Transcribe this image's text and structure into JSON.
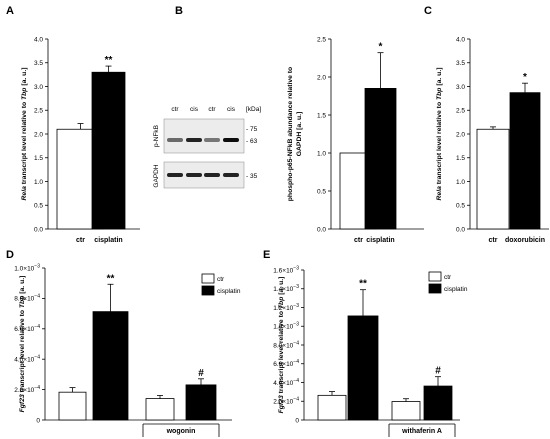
{
  "chart_data": [
    {
      "panel": "A",
      "type": "bar",
      "categories": [
        "ctr",
        "cisplatin"
      ],
      "values": [
        2.1,
        3.3
      ],
      "errors": [
        0.12,
        0.13
      ],
      "colors": [
        "#ffffff",
        "#000000"
      ],
      "significance": [
        "",
        "**"
      ],
      "ylabel_parts": [
        "Rela",
        " transcript level relative to ",
        "Tbp",
        " [a. u.]"
      ],
      "ylim": [
        0,
        4
      ],
      "yticks": [
        "0.0",
        "0.5",
        "1.0",
        "1.5",
        "2.0",
        "2.5",
        "3.0",
        "3.5",
        "4.0"
      ]
    },
    {
      "panel": "B",
      "type": "bar",
      "categories": [
        "ctr",
        "cisplatin"
      ],
      "values": [
        1.0,
        1.85
      ],
      "errors": [
        0,
        0.47
      ],
      "colors": [
        "#ffffff",
        "#000000"
      ],
      "significance": [
        "",
        "*"
      ],
      "ylabel_lines": [
        "phospho-p65-NFkB abundance relative to",
        "GAPDH [a. u.]"
      ],
      "ylim": [
        0,
        2.5
      ],
      "yticks": [
        "0.0",
        "0.5",
        "1.0",
        "1.5",
        "2.0",
        "2.5"
      ],
      "blot": {
        "lane_labels": [
          "ctr",
          "cis",
          "ctr",
          "cis"
        ],
        "marker_unit": "[kDa]",
        "rows": [
          {
            "label": "p-NFkB",
            "markers": [
              "75",
              "63"
            ]
          },
          {
            "label": "GAPDH",
            "markers": [
              "35"
            ]
          }
        ]
      }
    },
    {
      "panel": "C",
      "type": "bar",
      "categories": [
        "ctr",
        "doxorubicin"
      ],
      "values": [
        2.1,
        2.87
      ],
      "errors": [
        0.05,
        0.2
      ],
      "colors": [
        "#ffffff",
        "#000000"
      ],
      "significance": [
        "",
        "*"
      ],
      "ylabel_parts": [
        "Rela",
        " transcript level relative to ",
        "Tbp",
        " [a. u.]"
      ],
      "ylim": [
        0,
        4
      ],
      "yticks": [
        "0.0",
        "0.5",
        "1.0",
        "1.5",
        "2.0",
        "2.5",
        "3.0",
        "3.5",
        "4.0"
      ]
    },
    {
      "panel": "D",
      "type": "bar",
      "series": [
        {
          "name": "ctr",
          "color": "#ffffff",
          "values": [
            0.000183,
            0.000141
          ],
          "errors": [
            3e-05,
            2e-05
          ]
        },
        {
          "name": "cisplatin",
          "color": "#000000",
          "values": [
            0.000713,
            0.000231
          ],
          "errors": [
            0.00018,
            4e-05
          ]
        }
      ],
      "significance": [
        "**",
        "#"
      ],
      "group_label": "wogonin",
      "ylabel_parts": [
        "Fgf23",
        " transcript level relative to ",
        "Tbp",
        " [a. u.]"
      ],
      "ylim": [
        0,
        0.001
      ],
      "yticks": [
        {
          "m": "0",
          "e": ""
        },
        {
          "m": "2.0×10",
          "e": "−4"
        },
        {
          "m": "4.0×10",
          "e": "−4"
        },
        {
          "m": "6.0×10",
          "e": "−4"
        },
        {
          "m": "8.0×10",
          "e": "−4"
        },
        {
          "m": "1.0×10",
          "e": "−3"
        }
      ],
      "legend_position": "top-right"
    },
    {
      "panel": "E",
      "type": "bar",
      "series": [
        {
          "name": "ctr",
          "color": "#ffffff",
          "values": [
            0.000263,
            0.000197
          ],
          "errors": [
            4e-05,
            3e-05
          ]
        },
        {
          "name": "cisplatin",
          "color": "#000000",
          "values": [
            0.00111,
            0.000362
          ],
          "errors": [
            0.00028,
            0.0001
          ]
        }
      ],
      "significance": [
        "**",
        "#"
      ],
      "group_label": "withaferin A",
      "ylabel_parts": [
        "Fgf23",
        " transcript level relative to ",
        "Tbp",
        " [a. u.]"
      ],
      "ylim": [
        0,
        0.0016
      ],
      "yticks": [
        {
          "m": "0",
          "e": ""
        },
        {
          "m": "2.0×10",
          "e": "−4"
        },
        {
          "m": "4.0×10",
          "e": "−4"
        },
        {
          "m": "6.0×10",
          "e": "−4"
        },
        {
          "m": "8.0×10",
          "e": "−4"
        },
        {
          "m": "1.0×10",
          "e": "−3"
        },
        {
          "m": "1.2×10",
          "e": "−3"
        },
        {
          "m": "1.4×10",
          "e": "−3"
        },
        {
          "m": "1.6×10",
          "e": "−3"
        }
      ],
      "legend_position": "top-right"
    }
  ]
}
